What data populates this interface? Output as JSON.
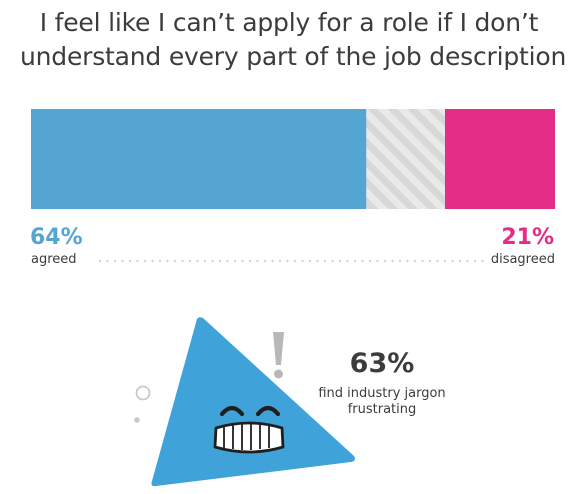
{
  "title": {
    "line1": "I feel like I can’t apply for a role if I don’t",
    "line2": "understand every part of the job description"
  },
  "chart_data": {
    "type": "bar",
    "orientation": "horizontal-stacked",
    "categories": [
      "agreed",
      "neutral",
      "disagreed"
    ],
    "values": [
      64,
      15,
      21
    ],
    "labels": {
      "agreed_value": "64%",
      "agreed_text": "agreed",
      "disagreed_value": "21%",
      "disagreed_text": "disagreed"
    },
    "colors": {
      "agreed": "#55A5D2",
      "neutral_base": "#E9E9E9",
      "neutral_stripe": "#D8D8D8",
      "disagreed": "#E42D86"
    },
    "xlim": [
      0,
      100
    ]
  },
  "stat": {
    "value": "63%",
    "label_line1": "find industry jargon",
    "label_line2": "frustrating"
  },
  "illustration": {
    "icon": "frustrated-triangle-icon",
    "primary_color": "#3FA3D9",
    "accent_color": "#B8B8B8"
  }
}
